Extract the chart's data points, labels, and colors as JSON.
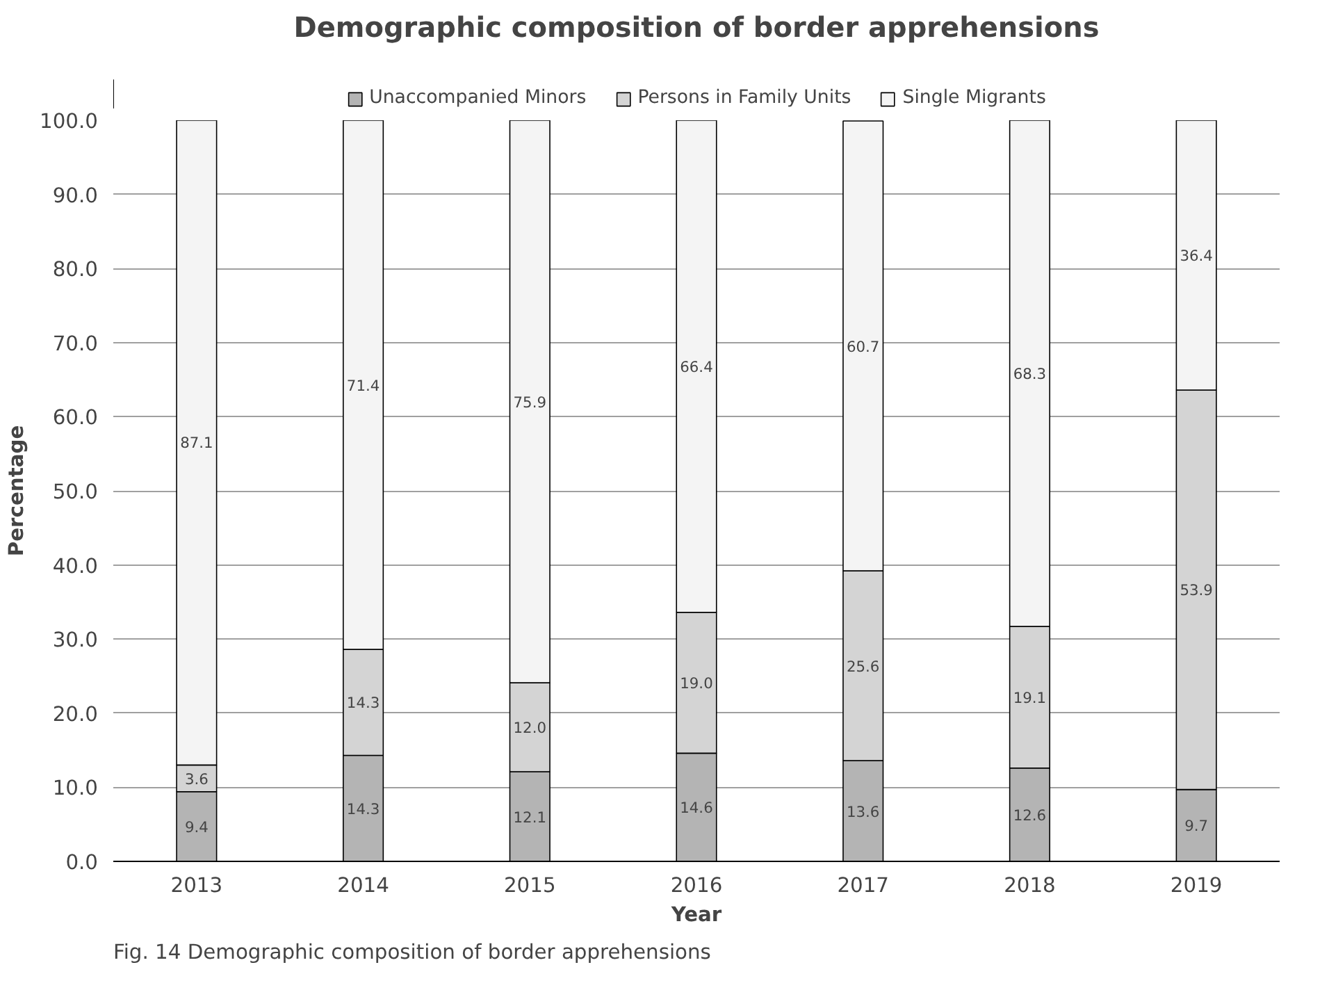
{
  "chart_data": {
    "type": "bar",
    "title": "Demographic composition of border apprehensions",
    "xlabel": "Year",
    "ylabel": "Percentage",
    "categories": [
      "2013",
      "2014",
      "2015",
      "2016",
      "2017",
      "2018",
      "2019"
    ],
    "stacked": true,
    "series": [
      {
        "name": "Unaccompanied Minors",
        "color": "#b4b4b4",
        "values": [
          9.4,
          14.3,
          12.1,
          14.6,
          13.6,
          12.6,
          9.7
        ],
        "value_labels": [
          "9.4",
          "14.3",
          "12.1",
          "14.6",
          "13.6",
          "12.6",
          "9.7"
        ]
      },
      {
        "name": "Persons in Family Units",
        "color": "#d4d4d4",
        "values": [
          3.6,
          14.3,
          12.0,
          19.0,
          25.6,
          19.1,
          53.9
        ],
        "value_labels": [
          "3.6",
          "14.3",
          "12.0",
          "19.0",
          "25.6",
          "19.1",
          "53.9"
        ]
      },
      {
        "name": "Single Migrants",
        "color": "#f4f4f4",
        "values": [
          87.1,
          71.4,
          75.9,
          66.4,
          60.7,
          68.3,
          36.4
        ],
        "value_labels": [
          "87.1",
          "71.4",
          "75.9",
          "66.4",
          "60.7",
          "68.3",
          "36.4"
        ]
      }
    ],
    "ylim": [
      0,
      100
    ],
    "yticks": [
      {
        "value": 0,
        "label": "0.0"
      },
      {
        "value": 10,
        "label": "10.0"
      },
      {
        "value": 20,
        "label": "20.0"
      },
      {
        "value": 30,
        "label": "30.0"
      },
      {
        "value": 40,
        "label": "40.0"
      },
      {
        "value": 50,
        "label": "50.0"
      },
      {
        "value": 60,
        "label": "60.0"
      },
      {
        "value": 70,
        "label": "70.0"
      },
      {
        "value": 80,
        "label": "80.0"
      },
      {
        "value": 90,
        "label": "90.0"
      },
      {
        "value": 100,
        "label": "100.0"
      }
    ],
    "grid": "y",
    "legend": "top",
    "annotations": [
      "Fig. 14 Demographic composition of border apprehensions"
    ]
  }
}
